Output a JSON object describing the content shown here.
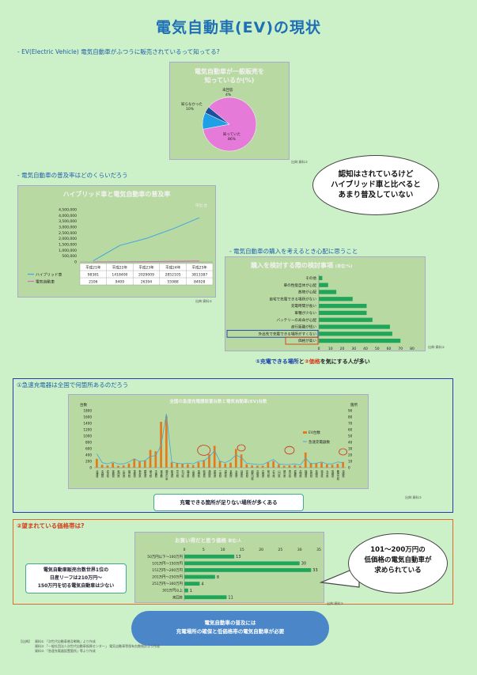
{
  "page": {
    "title": "電気自動車(EV)の現状",
    "sec1": "- EV(Electric Vehicle) 電気自動車がふつうに販売されているって知ってる?",
    "sec2": "- 電気自動車の普及率はどのくらいだろう",
    "sec3": "- 電気自動車の購入を考えるとき心配に思うこと",
    "sec4": "①急速充電器は全国で何箇所あるのだろう",
    "sec5": "②望まれている価格帯は?",
    "caption3_a": "①充電できる場所",
    "caption3_b": "と",
    "caption3_c": "②価格",
    "caption3_d": "を気にする人が多い"
  },
  "pie": {
    "title_line1": "電気自動車が一般販売を",
    "title_line2": "知っているか(%)",
    "label_known": "知っていた",
    "label_unknown": "知らなかった",
    "label_na": "未回答",
    "chart_data": {
      "type": "pie",
      "categories": [
        "知っていた",
        "知らなかった",
        "未回答"
      ],
      "values": [
        86,
        10,
        4
      ],
      "colors": [
        "#e67ad8",
        "#1fa0e6",
        "#1d4f9a"
      ]
    }
  },
  "cloud1": {
    "line1": "認知はされているけど",
    "line2": "ハイブリッド車と比べると",
    "line3": "あまり普及していない"
  },
  "line_chart": {
    "title": "ハイブリッド車と電気自動車の普及率",
    "unit": "単位:台",
    "y_ticks": [
      "4,500,000",
      "4,000,000",
      "3,500,000",
      "3,000,000",
      "2,500,000",
      "2,000,000",
      "1,500,000",
      "1,000,000",
      "500,000",
      "0"
    ],
    "chart_data": {
      "type": "line",
      "categories": [
        "平成21年",
        "平成22年",
        "平成23年",
        "平成24年",
        "平成25年"
      ],
      "series": [
        {
          "name": "ハイブリッド車",
          "values": [
            98381,
            1418400,
            2029009,
            2852105,
            3813387
          ],
          "color": "#3fa7e0"
        },
        {
          "name": "電気自動車",
          "values": [
            2106,
            9409,
            26394,
            55988,
            84928
          ],
          "color": "#e066c8"
        }
      ],
      "ylim": [
        0,
        4500000
      ]
    }
  },
  "bar_concern": {
    "title": "購入を検討する際の検討事項",
    "unit": "(単位:%)",
    "x_ticks": [
      "0",
      "10",
      "20",
      "30",
      "40",
      "50",
      "60",
      "70",
      "80"
    ],
    "chart_data": {
      "type": "bar",
      "orientation": "horizontal",
      "categories": [
        "その他",
        "車の性能自体が心配",
        "故障が心配",
        "自宅で充電できる場所がない",
        "充電時間が長い",
        "車種が少ない",
        "バッテリーの寿命が心配",
        "走行距離が短い",
        "外出先で充電できる場所がすくない",
        "価格が高い"
      ],
      "values": [
        3,
        8,
        15,
        29,
        41,
        41,
        46,
        61,
        63,
        70
      ],
      "xlim": [
        0,
        80
      ],
      "color": "#1fa65a"
    }
  },
  "charger": {
    "title": "全国の急速充電器設置台数と電気自動車(EV)台数",
    "left_unit": "台数",
    "right_unit": "箇所",
    "left_ticks": [
      "1800",
      "1600",
      "1400",
      "1200",
      "1000",
      "800",
      "600",
      "400",
      "200",
      "0"
    ],
    "right_ticks": [
      "90",
      "80",
      "70",
      "60",
      "50",
      "40",
      "30",
      "20",
      "10",
      "0"
    ],
    "legend_ev": "EV台数",
    "legend_charger": "急速充電器数",
    "prefectures": [
      "北海道",
      "青森県",
      "岩手県",
      "宮城県",
      "秋田県",
      "山形県",
      "福島県",
      "茨城県",
      "栃木県",
      "群馬県",
      "埼玉県",
      "千葉県",
      "東京都",
      "神奈川県",
      "新潟県",
      "富山県",
      "石川県",
      "福井県",
      "山梨県",
      "長野県",
      "岐阜県",
      "静岡県",
      "愛知県",
      "三重県",
      "滋賀県",
      "京都府",
      "大阪府",
      "兵庫県",
      "奈良県",
      "和歌山県",
      "鳥取県",
      "島根県",
      "岡山県",
      "広島県",
      "山口県",
      "徳島県",
      "香川県",
      "愛媛県",
      "高知県",
      "福岡県",
      "佐賀県",
      "長崎県",
      "熊本県",
      "大分県",
      "宮崎県",
      "鹿児島県",
      "沖縄県"
    ],
    "chart_data": {
      "type": "bar",
      "series": [
        {
          "name": "EV台数",
          "values": [
            280,
            90,
            70,
            150,
            60,
            70,
            130,
            280,
            200,
            230,
            560,
            520,
            1450,
            1620,
            170,
            150,
            120,
            110,
            80,
            170,
            240,
            420,
            690,
            210,
            130,
            160,
            590,
            420,
            110,
            70,
            60,
            60,
            170,
            210,
            100,
            60,
            70,
            80,
            50,
            480,
            150,
            140,
            160,
            100,
            90,
            120,
            180
          ],
          "color": "#e67a1a"
        },
        {
          "name": "急速充電器数",
          "values": [
            22,
            8,
            6,
            9,
            6,
            6,
            9,
            14,
            10,
            11,
            18,
            19,
            35,
            85,
            9,
            7,
            6,
            7,
            6,
            10,
            11,
            17,
            27,
            10,
            8,
            12,
            20,
            16,
            7,
            6,
            5,
            5,
            9,
            13,
            6,
            5,
            5,
            6,
            4,
            15,
            6,
            7,
            9,
            6,
            6,
            9,
            8
          ],
          "color": "#3fa7e0"
        }
      ],
      "ylim_left": [
        0,
        1800
      ],
      "ylim_right": [
        0,
        90
      ]
    }
  },
  "charger_note": "充電できる箇所が足りない場所が多くある",
  "price": {
    "title": "お買い得だと思う価格",
    "unit": "単位:人",
    "x_ticks": [
      "0",
      "5",
      "10",
      "15",
      "20",
      "25",
      "30",
      "35"
    ],
    "chart_data": {
      "type": "bar",
      "orientation": "horizontal",
      "categories": [
        "50万円以下〜100万円",
        "101万円〜150万円",
        "151万円〜200万円",
        "201万円〜250万円",
        "251万円〜300万円",
        "301万円以上",
        "未回答"
      ],
      "values": [
        13,
        30,
        33,
        8,
        4,
        1,
        11
      ],
      "xlim": [
        0,
        35
      ],
      "color": "#1fa65a"
    }
  },
  "price_note": {
    "line1": "電気自動車販売台数世界1位の",
    "line2": "日産リーフは210万円〜",
    "line3": "150万円を切る電気自動車は少ない"
  },
  "cloud2": {
    "line1": "101〜200万円の",
    "line2": "低価格の電気自動車が",
    "line3": "求められている"
  },
  "conclusion": {
    "line1": "電気自動車の普及には",
    "line2": "充電場所の確保と低価格帯の電気自動車が必要"
  },
  "footer": {
    "label": "【出典】",
    "lines": [
      "資料① 「次世代自動車普及戦略」より作成",
      "資料② 「一般社団法人次世代自動車振興センター」 電気自動車等保有台数統計より作成",
      "資料③ 「急速充電器設置箇所」等より作成"
    ]
  },
  "source": "出典:資料①"
}
